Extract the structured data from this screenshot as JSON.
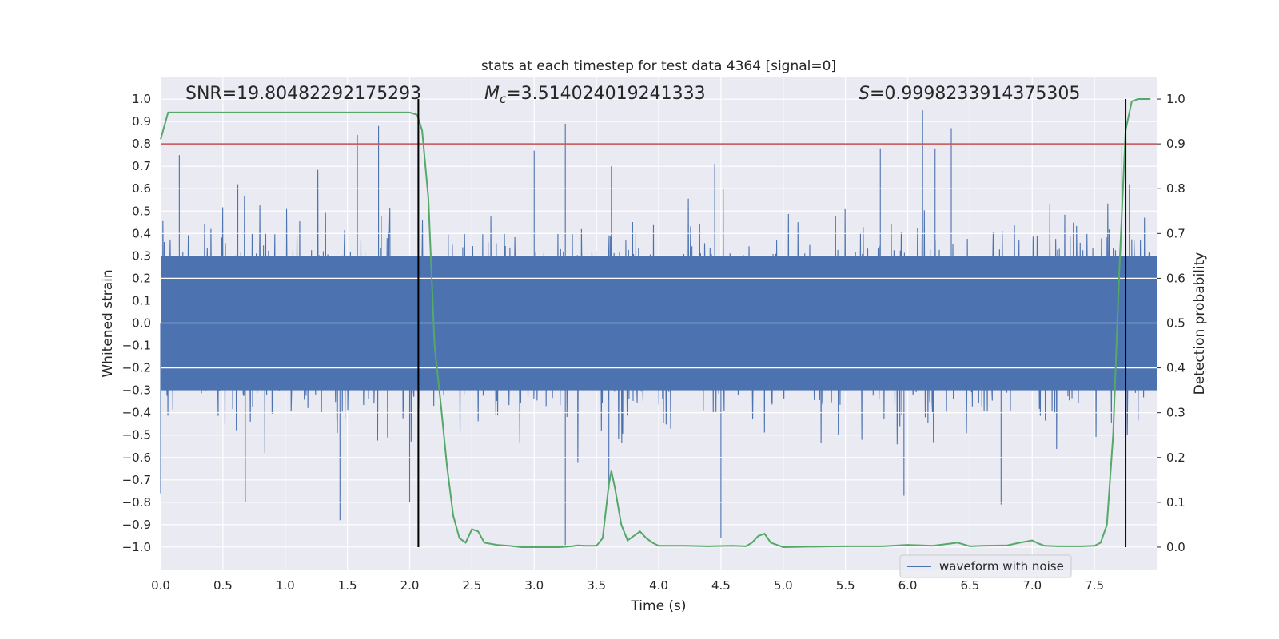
{
  "chart_data": {
    "type": "line",
    "title": "stats at each timestep for test data 4364 [signal=0]",
    "xlabel": "Time (s)",
    "ylabel_left": "Whitened strain",
    "ylabel_right": "Detection probability",
    "xlim": [
      0.0,
      8.0
    ],
    "ylim_left": [
      -1.1,
      1.1
    ],
    "ylim_right": [
      -0.05,
      1.05
    ],
    "x_ticks": [
      "0.0",
      "0.5",
      "1.0",
      "1.5",
      "2.0",
      "2.5",
      "3.0",
      "3.5",
      "4.0",
      "4.5",
      "5.0",
      "5.5",
      "6.0",
      "6.5",
      "7.0",
      "7.5"
    ],
    "y_left_ticks": [
      "1.0",
      "0.9",
      "0.8",
      "0.7",
      "0.6",
      "0.5",
      "0.4",
      "0.3",
      "0.2",
      "0.1",
      "0.0",
      "−0.1",
      "−0.2",
      "−0.3",
      "−0.4",
      "−0.5",
      "−0.6",
      "−0.7",
      "−0.8",
      "−0.9",
      "−1.0"
    ],
    "y_right_ticks": [
      "1.0",
      "0.9",
      "0.8",
      "0.7",
      "0.6",
      "0.5",
      "0.4",
      "0.3",
      "0.2",
      "0.1",
      "0.0"
    ],
    "annotations": {
      "snr": "SNR=19.80482292175293",
      "mc_prefix": "M",
      "mc_sub": "c",
      "mc_value": "=3.514024019241333",
      "s_prefix": "S",
      "s_value": "=0.9998233914375305"
    },
    "threshold_prob": 0.9,
    "vlines_x": [
      2.07,
      7.75
    ],
    "legend": {
      "label": "waveform with noise",
      "placement": "lower-right"
    },
    "colors": {
      "waveform": "#4c72b0",
      "probability": "#55a868",
      "threshold": "#c44e52",
      "vline": "#000000",
      "plot_bg": "#eaeaf2",
      "grid": "#ffffff"
    },
    "series": [
      {
        "name": "waveform with noise",
        "kind": "noise",
        "core_amplitude": 0.3,
        "spikes": [
          {
            "x": 0.0,
            "y": -0.76
          },
          {
            "x": 0.15,
            "y": 0.75
          },
          {
            "x": 0.62,
            "y": 0.62
          },
          {
            "x": 0.68,
            "y": -0.8
          },
          {
            "x": 1.44,
            "y": -0.88
          },
          {
            "x": 1.58,
            "y": 0.84
          },
          {
            "x": 1.75,
            "y": 0.88
          },
          {
            "x": 2.0,
            "y": -0.8
          },
          {
            "x": 3.25,
            "y": 0.89
          },
          {
            "x": 3.25,
            "y": -0.99
          },
          {
            "x": 3.0,
            "y": 0.77
          },
          {
            "x": 3.6,
            "y": -0.74
          },
          {
            "x": 3.62,
            "y": 0.7
          },
          {
            "x": 4.5,
            "y": -0.96
          },
          {
            "x": 4.45,
            "y": 0.71
          },
          {
            "x": 5.78,
            "y": 0.78
          },
          {
            "x": 6.12,
            "y": 0.95
          },
          {
            "x": 6.35,
            "y": 0.87
          },
          {
            "x": 6.22,
            "y": 0.78
          },
          {
            "x": 5.97,
            "y": -0.77
          },
          {
            "x": 6.75,
            "y": -0.81
          },
          {
            "x": 7.72,
            "y": 0.79
          },
          {
            "x": 7.78,
            "y": 0.62
          }
        ]
      },
      {
        "name": "detection probability",
        "axis": "right",
        "x": [
          0.0,
          0.06,
          0.15,
          0.5,
          1.0,
          1.5,
          1.9,
          2.0,
          2.06,
          2.1,
          2.15,
          2.2,
          2.25,
          2.3,
          2.35,
          2.4,
          2.45,
          2.5,
          2.55,
          2.6,
          2.7,
          2.8,
          2.9,
          3.0,
          3.1,
          3.2,
          3.3,
          3.35,
          3.4,
          3.5,
          3.55,
          3.6,
          3.62,
          3.65,
          3.7,
          3.75,
          3.8,
          3.85,
          3.9,
          3.95,
          4.0,
          4.2,
          4.4,
          4.6,
          4.7,
          4.75,
          4.8,
          4.85,
          4.9,
          5.0,
          5.2,
          5.5,
          5.8,
          6.0,
          6.2,
          6.4,
          6.45,
          6.5,
          6.6,
          6.8,
          6.9,
          7.0,
          7.05,
          7.1,
          7.2,
          7.4,
          7.5,
          7.55,
          7.6,
          7.65,
          7.7,
          7.75,
          7.8,
          7.85,
          7.95
        ],
        "y": [
          0.91,
          0.97,
          0.97,
          0.97,
          0.97,
          0.97,
          0.97,
          0.97,
          0.965,
          0.93,
          0.78,
          0.45,
          0.32,
          0.18,
          0.07,
          0.02,
          0.01,
          0.04,
          0.035,
          0.01,
          0.005,
          0.003,
          0.0,
          0.0,
          0.0,
          0.0,
          0.002,
          0.004,
          0.003,
          0.003,
          0.02,
          0.14,
          0.17,
          0.13,
          0.05,
          0.015,
          0.025,
          0.035,
          0.02,
          0.01,
          0.003,
          0.003,
          0.002,
          0.003,
          0.002,
          0.01,
          0.025,
          0.03,
          0.01,
          0.0,
          0.001,
          0.002,
          0.002,
          0.005,
          0.003,
          0.01,
          0.006,
          0.002,
          0.003,
          0.004,
          0.01,
          0.015,
          0.008,
          0.003,
          0.002,
          0.002,
          0.003,
          0.01,
          0.05,
          0.25,
          0.62,
          0.93,
          0.995,
          1.0,
          1.0
        ]
      }
    ]
  }
}
